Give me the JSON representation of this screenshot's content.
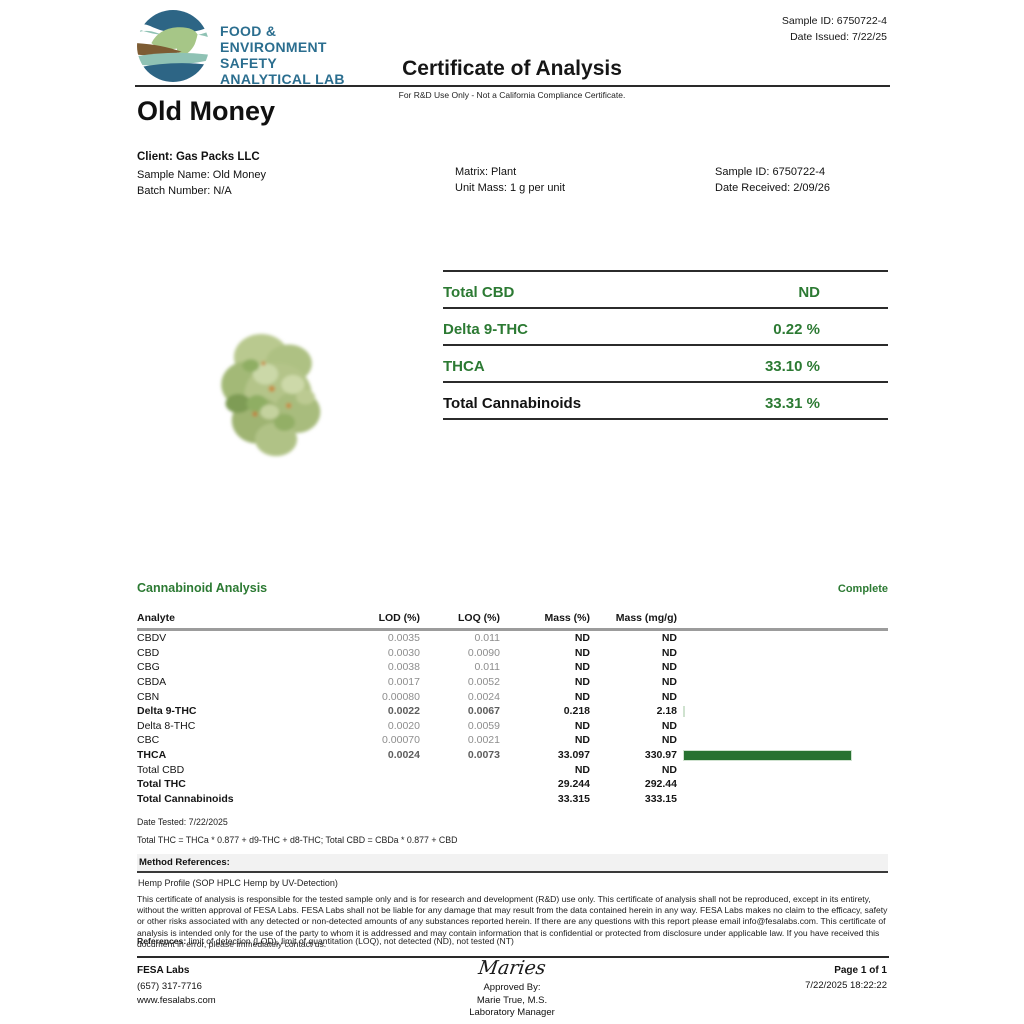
{
  "header": {
    "lab_name_lines": [
      "FOOD &",
      "ENVIRONMENT",
      "SAFETY",
      "ANALYTICAL LAB"
    ],
    "title": "Certificate of Analysis",
    "subtitle": "For R&D Use Only - Not a California Compliance Certificate.",
    "sample_id": "Sample ID: 6750722-4",
    "date_issued": "Date Issued: 7/22/25"
  },
  "product": {
    "name": "Old Money",
    "client": "Client: Gas Packs LLC",
    "sample_name": "Sample Name: Old Money",
    "batch_number": "Batch Number: N/A",
    "matrix": "Matrix: Plant",
    "unit_mass": "Unit Mass: 1 g per unit",
    "sample_id": "Sample ID: 6750722-4",
    "date_received": "Date Received: 2/09/26"
  },
  "summary": {
    "rows": [
      {
        "label": "Total CBD",
        "value": "ND",
        "label_black": false
      },
      {
        "label": "Delta 9-THC",
        "value": "0.22 %",
        "label_black": false
      },
      {
        "label": "THCA",
        "value": "33.10 %",
        "label_black": false
      },
      {
        "label": "Total Cannabinoids",
        "value": "33.31 %",
        "label_black": true
      }
    ]
  },
  "analysis": {
    "section_title": "Cannabinoid Analysis",
    "status": "Complete",
    "columns": {
      "analyte": "Analyte",
      "lod": "LOD (%)",
      "loq": "LOQ (%)",
      "mass_pct": "Mass (%)",
      "mass_mgg": "Mass (mg/g)"
    },
    "bar_scale_max": 500,
    "rows": [
      {
        "analyte": "CBDV",
        "lod": "0.0035",
        "loq": "0.011",
        "mass_pct": "ND",
        "mass_mgg": "ND",
        "bold": false,
        "bar": 0
      },
      {
        "analyte": "CBD",
        "lod": "0.0030",
        "loq": "0.0090",
        "mass_pct": "ND",
        "mass_mgg": "ND",
        "bold": false,
        "bar": 0
      },
      {
        "analyte": "CBG",
        "lod": "0.0038",
        "loq": "0.011",
        "mass_pct": "ND",
        "mass_mgg": "ND",
        "bold": false,
        "bar": 0
      },
      {
        "analyte": "CBDA",
        "lod": "0.0017",
        "loq": "0.0052",
        "mass_pct": "ND",
        "mass_mgg": "ND",
        "bold": false,
        "bar": 0
      },
      {
        "analyte": "CBN",
        "lod": "0.00080",
        "loq": "0.0024",
        "mass_pct": "ND",
        "mass_mgg": "ND",
        "bold": false,
        "bar": 0
      },
      {
        "analyte": "Delta 9-THC",
        "lod": "0.0022",
        "loq": "0.0067",
        "mass_pct": "0.218",
        "mass_mgg": "2.18",
        "bold": true,
        "bar": 2.18
      },
      {
        "analyte": "Delta 8-THC",
        "lod": "0.0020",
        "loq": "0.0059",
        "mass_pct": "ND",
        "mass_mgg": "ND",
        "bold": false,
        "bar": 0
      },
      {
        "analyte": "CBC",
        "lod": "0.00070",
        "loq": "0.0021",
        "mass_pct": "ND",
        "mass_mgg": "ND",
        "bold": false,
        "bar": 0
      },
      {
        "analyte": "THCA",
        "lod": "0.0024",
        "loq": "0.0073",
        "mass_pct": "33.097",
        "mass_mgg": "330.97",
        "bold": true,
        "bar": 330.97
      },
      {
        "analyte": "Total CBD",
        "lod": "",
        "loq": "",
        "mass_pct": "ND",
        "mass_mgg": "ND",
        "bold": false,
        "bar": 0
      },
      {
        "analyte": "Total THC",
        "lod": "",
        "loq": "",
        "mass_pct": "29.244",
        "mass_mgg": "292.44",
        "bold": true,
        "bar": 0
      },
      {
        "analyte": "Total Cannabinoids",
        "lod": "",
        "loq": "",
        "mass_pct": "33.315",
        "mass_mgg": "333.15",
        "bold": true,
        "bar": 0
      }
    ],
    "date_tested": "Date Tested: 7/22/2025",
    "formula": "Total THC = THCa * 0.877 + d9-THC + d8-THC; Total CBD = CBDa * 0.877 + CBD",
    "method_references_label": "Method References:",
    "method_name": "Hemp Profile (SOP HPLC Hemp by UV-Detection)"
  },
  "disclaimer": {
    "text": "This certificate of analysis is responsible for the tested sample only and is for research and development (R&D) use only. This certificate of analysis shall not be reproduced, except in its entirety, without the written approval of FESA Labs. FESA Labs shall not be liable for any damage that may result from the data contained herein in any way. FESA Labs makes no claim to the efficacy, safety or other risks associated with any detected or non-detected amounts of any substances reported herein. If there are any questions with this report please email info@fesalabs.com. This certificate of analysis is intended only for the use of the party to whom it is addressed and may contain information that is confidential or protected from disclosure under applicable law. If you have received this document in error, please immediately contact us.",
    "references_label": "References:",
    "references_text": " limit of detection (LOD), limit of quantitation (LOQ), not detected (ND), not tested (NT)"
  },
  "footer": {
    "lab_name": "FESA Labs",
    "phone": "(657) 317-7716",
    "website": "www.fesalabs.com",
    "signature": "Maries",
    "approved_by": "Approved By:",
    "approver_name": "Marie True, M.S.",
    "approver_title": "Laboratory Manager",
    "page": "Page 1 of 1",
    "timestamp": "7/22/2025 18:22:22"
  },
  "colors": {
    "accent_green": "#2c7a33",
    "bar_fill": "#287231",
    "logo_teal": "#2b6e8f"
  }
}
